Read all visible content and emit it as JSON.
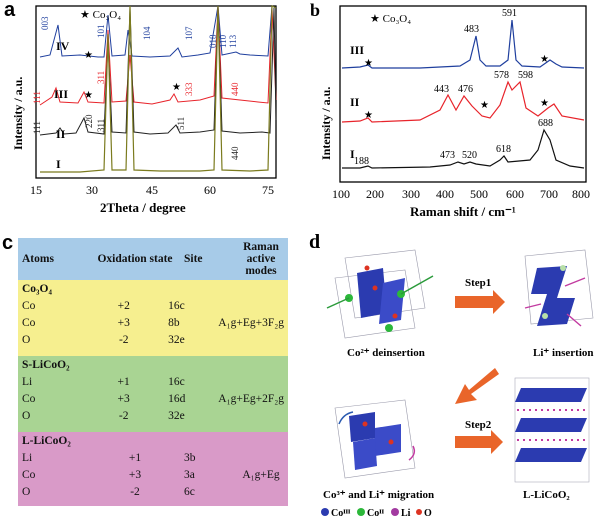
{
  "panels": {
    "a": {
      "label": "a",
      "legend": "★ Co₃O₄",
      "xlabel": "2Theta / degree",
      "ylabel": "Intensity / a.u.",
      "xticks": [
        "15",
        "30",
        "45",
        "60",
        "75"
      ],
      "curves": [
        "IV",
        "III",
        "II",
        "I"
      ],
      "peaks_iv": [
        "003",
        "101",
        "104",
        "107",
        "018",
        "110",
        "113"
      ],
      "peaks_iii": [
        "111",
        "311",
        "333",
        "440"
      ],
      "peaks_ii": [
        "111",
        "220",
        "311",
        "511",
        "440"
      ]
    },
    "b": {
      "label": "b",
      "legend": "★ Co₃O₄",
      "xlabel": "Raman shift / cm⁻¹",
      "ylabel": "Intensity / a.u.",
      "xticks": [
        "100",
        "200",
        "300",
        "400",
        "500",
        "600",
        "700",
        "800"
      ],
      "curves": [
        "III",
        "II",
        "I"
      ],
      "peaks_iii": [
        "483",
        "591"
      ],
      "peaks_ii": [
        "443",
        "476",
        "578",
        "598"
      ],
      "peaks_i": [
        "188",
        "473",
        "520",
        "618",
        "688"
      ]
    },
    "c": {
      "label": "c",
      "headers": [
        "Atoms",
        "Oxidation state",
        "Site",
        "Raman active modes"
      ],
      "groups": [
        {
          "name": "Co₃O₄",
          "color": "#f6ef8f",
          "modes": "A₁g+Eg+3F₂g",
          "rows": [
            [
              "Co",
              "+2",
              "16c"
            ],
            [
              "Co",
              "+3",
              "8b"
            ],
            [
              "O",
              "-2",
              "32e"
            ]
          ]
        },
        {
          "name": "S-LiCoO₂",
          "color": "#a9d493",
          "modes": "A₁g+Eg+2F₂g",
          "rows": [
            [
              "Li",
              "+1",
              "16c"
            ],
            [
              "Co",
              "+3",
              "16d"
            ],
            [
              "O",
              "-2",
              "32e"
            ]
          ]
        },
        {
          "name": "L-LiCoO₂",
          "color": "#d99ac8",
          "modes": "A₁g+Eg",
          "rows": [
            [
              "Li",
              "+1",
              "3b"
            ],
            [
              "Co",
              "+3",
              "3a"
            ],
            [
              "O",
              "-2",
              "6c"
            ]
          ]
        }
      ],
      "header_color": "#a7cbe8"
    },
    "d": {
      "label": "d",
      "step1": "Step1",
      "step2": "Step2",
      "cap1": "Co²⁺ deinsertion",
      "cap2": "Li⁺ insertion",
      "cap3": "Co³⁺ and Li⁺ migration",
      "cap4": "L-LiCoO₂",
      "legend": [
        "Coᴵᴵᴵ",
        "Coᴵᴵ",
        "Li",
        "O"
      ]
    }
  },
  "colors": {
    "I": "#7b7b1e",
    "II": "#222222",
    "III": "#e8242b",
    "IV": "#1f3f9e",
    "b_I": "#111111",
    "b_II": "#e8242b",
    "b_III": "#1f3f9e"
  }
}
